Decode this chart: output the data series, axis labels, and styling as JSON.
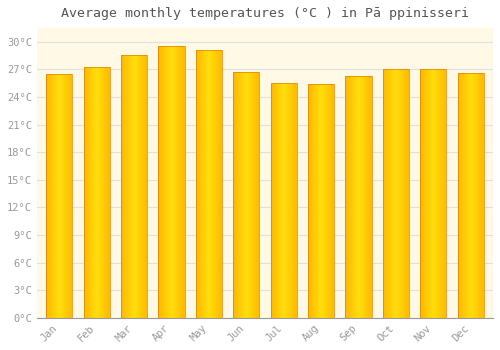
{
  "title": "Average monthly temperatures (°C ) in Pā ppinisseri",
  "months": [
    "Jan",
    "Feb",
    "Mar",
    "Apr",
    "May",
    "Jun",
    "Jul",
    "Aug",
    "Sep",
    "Oct",
    "Nov",
    "Dec"
  ],
  "values": [
    26.5,
    27.3,
    28.6,
    29.5,
    29.1,
    26.7,
    25.5,
    25.4,
    26.3,
    27.0,
    27.1,
    26.6
  ],
  "bar_color": "#FFA520",
  "bar_edge_color": "#E08000",
  "yticks": [
    0,
    3,
    6,
    9,
    12,
    15,
    18,
    21,
    24,
    27,
    30
  ],
  "ylim": [
    0,
    31.5
  ],
  "background_color": "#FFFFFF",
  "plot_bg_color": "#FFF9E6",
  "grid_color": "#E0E0E0",
  "title_fontsize": 9.5,
  "tick_fontsize": 7.5,
  "tick_color": "#999999"
}
